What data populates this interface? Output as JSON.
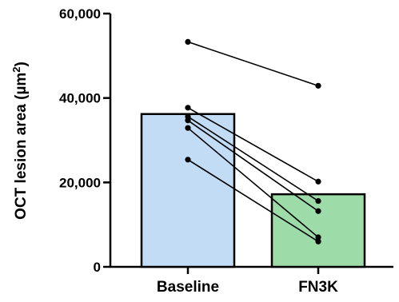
{
  "chart_data": {
    "type": "bar",
    "categories": [
      "Baseline",
      "FN3K"
    ],
    "values": [
      36200,
      17200
    ],
    "bar_colors": [
      "#c2dcf6",
      "#9ddba9"
    ],
    "ylabel": "OCT lesion area (µm²)",
    "ylabel_main": "OCT lesion area (µm",
    "ylabel_sup": "2",
    "ylabel_close": ")",
    "ylim": [
      0,
      60000
    ],
    "yticks": [
      0,
      20000,
      40000,
      60000
    ],
    "ytick_labels": [
      "0",
      "20,000",
      "40,000",
      "60,000"
    ],
    "paired_points": [
      {
        "baseline": 53300,
        "fn3k": 42900
      },
      {
        "baseline": 37700,
        "fn3k": 20200
      },
      {
        "baseline": 35600,
        "fn3k": 15600
      },
      {
        "baseline": 34700,
        "fn3k": 13200
      },
      {
        "baseline": 32900,
        "fn3k": 7000
      },
      {
        "baseline": 25400,
        "fn3k": 6000
      }
    ],
    "grid": false
  }
}
